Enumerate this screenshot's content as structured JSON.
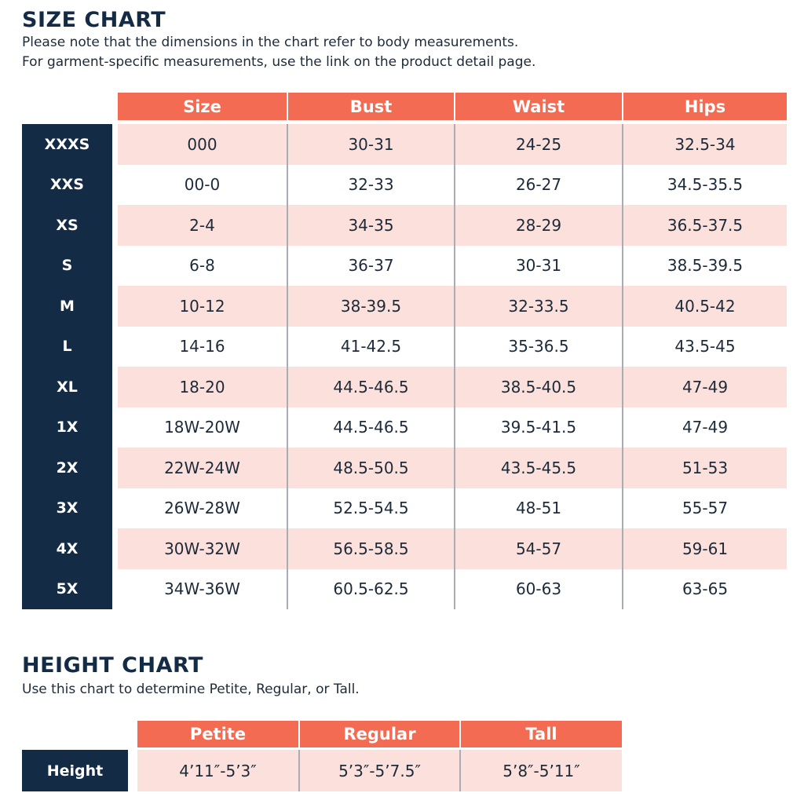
{
  "size_chart": {
    "title": "SIZE CHART",
    "note_lines": [
      "Please note that the dimensions in the chart refer to body measurements.",
      "For garment-specific measurements, use the link on the product detail page."
    ],
    "headers": [
      "Size",
      "Bust",
      "Waist",
      "Hips"
    ],
    "rows": [
      {
        "label": "XXXS",
        "cells": [
          "000",
          "30-31",
          "24-25",
          "32.5-34"
        ]
      },
      {
        "label": "XXS",
        "cells": [
          "00-0",
          "32-33",
          "26-27",
          "34.5-35.5"
        ]
      },
      {
        "label": "XS",
        "cells": [
          "2-4",
          "34-35",
          "28-29",
          "36.5-37.5"
        ]
      },
      {
        "label": "S",
        "cells": [
          "6-8",
          "36-37",
          "30-31",
          "38.5-39.5"
        ]
      },
      {
        "label": "M",
        "cells": [
          "10-12",
          "38-39.5",
          "32-33.5",
          "40.5-42"
        ]
      },
      {
        "label": "L",
        "cells": [
          "14-16",
          "41-42.5",
          "35-36.5",
          "43.5-45"
        ]
      },
      {
        "label": "XL",
        "cells": [
          "18-20",
          "44.5-46.5",
          "38.5-40.5",
          "47-49"
        ]
      },
      {
        "label": "1X",
        "cells": [
          "18W-20W",
          "44.5-46.5",
          "39.5-41.5",
          "47-49"
        ]
      },
      {
        "label": "2X",
        "cells": [
          "22W-24W",
          "48.5-50.5",
          "43.5-45.5",
          "51-53"
        ]
      },
      {
        "label": "3X",
        "cells": [
          "26W-28W",
          "52.5-54.5",
          "48-51",
          "55-57"
        ]
      },
      {
        "label": "4X",
        "cells": [
          "30W-32W",
          "56.5-58.5",
          "54-57",
          "59-61"
        ]
      },
      {
        "label": "5X",
        "cells": [
          "34W-36W",
          "60.5-62.5",
          "60-63",
          "63-65"
        ]
      }
    ]
  },
  "height_chart": {
    "title": "HEIGHT CHART",
    "note": "Use this chart to determine Petite, Regular, or Tall.",
    "headers": [
      "Petite",
      "Regular",
      "Tall"
    ],
    "row": {
      "label": "Height",
      "cells": [
        "4’11″-5’3″",
        "5’3″-5’7.5″",
        "5’8″-5’11″"
      ]
    }
  },
  "colors": {
    "header": "#f26b52",
    "label": "#132b45",
    "stripe": "#fbe0db"
  }
}
